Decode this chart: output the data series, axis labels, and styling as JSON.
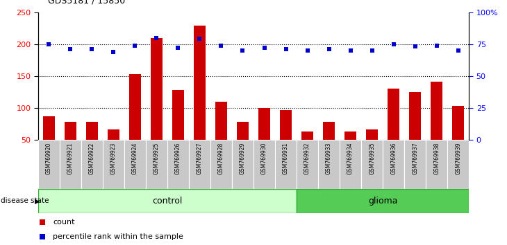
{
  "title": "GDS5181 / 15850",
  "samples": [
    "GSM769920",
    "GSM769921",
    "GSM769922",
    "GSM769923",
    "GSM769924",
    "GSM769925",
    "GSM769926",
    "GSM769927",
    "GSM769928",
    "GSM769929",
    "GSM769930",
    "GSM769931",
    "GSM769932",
    "GSM769933",
    "GSM769934",
    "GSM769935",
    "GSM769936",
    "GSM769937",
    "GSM769938",
    "GSM769939"
  ],
  "counts": [
    87,
    78,
    78,
    66,
    153,
    210,
    128,
    229,
    110,
    78,
    100,
    97,
    63,
    78,
    63,
    66,
    130,
    125,
    141,
    103
  ],
  "percentile_ranks": [
    75,
    71,
    71,
    69,
    74,
    80,
    72,
    79,
    74,
    70,
    72,
    71,
    70,
    71,
    70,
    70,
    75,
    73,
    74,
    70
  ],
  "control_count": 12,
  "glioma_count": 8,
  "ylim_left": [
    50,
    250
  ],
  "ylim_right": [
    0,
    100
  ],
  "yticks_left": [
    50,
    100,
    150,
    200,
    250
  ],
  "yticks_right": [
    0,
    25,
    50,
    75,
    100
  ],
  "ytick_right_labels": [
    "0",
    "25",
    "50",
    "75",
    "100%"
  ],
  "bar_color": "#cc0000",
  "dot_color": "#0000cc",
  "control_color": "#ccffcc",
  "glioma_color": "#55cc55",
  "control_label": "control",
  "glioma_label": "glioma",
  "legend_count": "count",
  "legend_pct": "percentile rank within the sample",
  "disease_state_label": "disease state",
  "tick_bg_color": "#c8c8c8",
  "grid_color": "#000000",
  "grid_linestyle": ":",
  "grid_linewidth": 0.8
}
